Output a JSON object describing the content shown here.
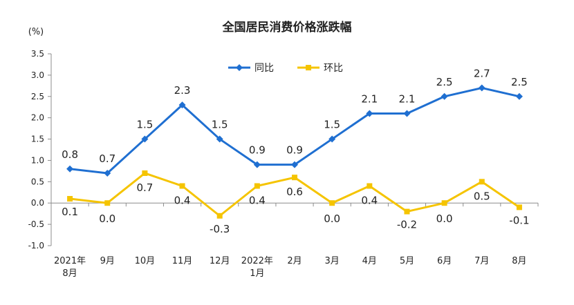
{
  "chart_data": {
    "type": "line",
    "title": "全国居民消费价格涨跌幅",
    "ylabel": "(%)",
    "xlabel": "",
    "ylim": [
      -1.0,
      3.5
    ],
    "yticks": [
      "3.5",
      "3.0",
      "2.5",
      "2.0",
      "1.5",
      "1.0",
      "0.5",
      "0.0",
      "-0.5",
      "-1.0"
    ],
    "categories": [
      [
        "2021年",
        "8月"
      ],
      [
        "9月"
      ],
      [
        "10月"
      ],
      [
        "11月"
      ],
      [
        "12月"
      ],
      [
        "2022年",
        "1月"
      ],
      [
        "2月"
      ],
      [
        "3月"
      ],
      [
        "4月"
      ],
      [
        "5月"
      ],
      [
        "6月"
      ],
      [
        "7月"
      ],
      [
        "8月"
      ]
    ],
    "series": [
      {
        "name": "同比",
        "color": "#1F6FD1",
        "marker": "diamond",
        "values": [
          0.8,
          0.7,
          1.5,
          2.3,
          1.5,
          0.9,
          0.9,
          1.5,
          2.1,
          2.1,
          2.5,
          2.7,
          2.5
        ],
        "labels": [
          "0.8",
          "0.7",
          "1.5",
          "2.3",
          "1.5",
          "0.9",
          "0.9",
          "1.5",
          "2.1",
          "2.1",
          "2.5",
          "2.7",
          "2.5"
        ]
      },
      {
        "name": "环比",
        "color": "#F5C400",
        "marker": "square",
        "values": [
          0.1,
          0.0,
          0.7,
          0.4,
          -0.3,
          0.4,
          0.6,
          0.0,
          0.4,
          -0.2,
          0.0,
          0.5,
          -0.1
        ],
        "labels": [
          "0.1",
          "0.0",
          "0.7",
          "0.4",
          "-0.3",
          "0.4",
          "0.6",
          "0.0",
          "0.4",
          "-0.2",
          "0.0",
          "0.5",
          "-0.1"
        ]
      }
    ],
    "legend_position": "top-center",
    "grid": false
  }
}
